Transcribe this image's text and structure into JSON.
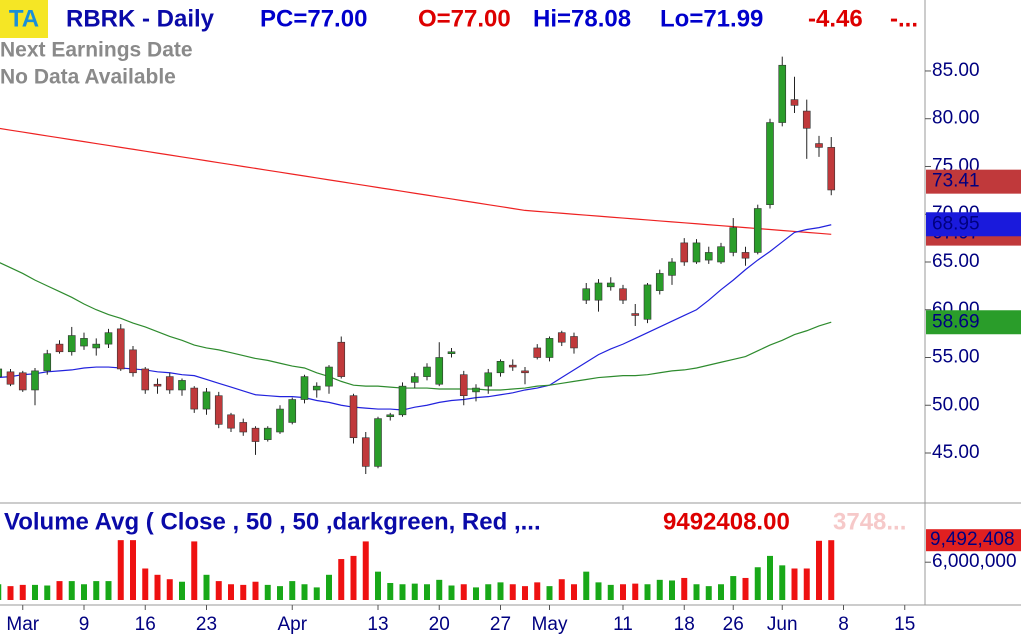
{
  "chart_data": {
    "type": "candlestick",
    "ticker_badge": "TA",
    "title": "RBRK - Daily",
    "header_fields": [
      {
        "text": "PC=77.00",
        "color": "#0000cc"
      },
      {
        "text": "O=77.00",
        "color": "#dd0000"
      },
      {
        "text": "Hi=78.08",
        "color": "#0000cc"
      },
      {
        "text": "Lo=71.99",
        "color": "#0000cc"
      },
      {
        "text": "-4.46",
        "color": "#dd0000"
      },
      {
        "text": "-...",
        "color": "#dd0000"
      }
    ],
    "notes": [
      "Next Earnings Date",
      "No Data Available"
    ],
    "categories": [
      null,
      null,
      "Mar",
      null,
      null,
      null,
      null,
      "9",
      null,
      null,
      null,
      null,
      "16",
      null,
      null,
      null,
      null,
      "23",
      null,
      null,
      null,
      null,
      null,
      null,
      "Apr",
      null,
      null,
      null,
      null,
      null,
      null,
      "13",
      null,
      null,
      null,
      null,
      "20",
      null,
      null,
      null,
      null,
      "27",
      null,
      null,
      null,
      "May",
      null,
      null,
      null,
      null,
      null,
      "11",
      null,
      null,
      null,
      null,
      "18",
      null,
      null,
      null,
      "26",
      null,
      null,
      null,
      "Jun",
      null,
      null,
      null,
      null,
      "8",
      null,
      null,
      null,
      null,
      "15"
    ],
    "open": [
      53.0,
      53.5,
      53.4,
      51.6,
      53.6,
      56.4,
      55.6,
      56.2,
      56.0,
      56.4,
      58.0,
      55.8,
      53.8,
      52.2,
      53.0,
      51.6,
      51.8,
      49.6,
      51.0,
      49.0,
      48.2,
      47.6,
      46.4,
      47.2,
      48.2,
      50.6,
      51.6,
      52.0,
      56.6,
      51.0,
      46.6,
      43.6,
      48.8,
      49.0,
      52.4,
      53.0,
      52.2,
      55.4,
      53.2,
      51.4,
      52.0,
      53.4,
      54.2,
      53.6,
      56.0,
      55.0,
      57.6,
      57.2,
      61.0,
      61.0,
      62.4,
      62.2,
      59.6,
      59.0,
      62.0,
      63.6,
      67.0,
      65.0,
      65.2,
      65.0,
      66.0,
      66.0,
      66.0,
      71.0,
      79.6,
      82.0,
      80.8,
      77.4,
      77.0,
      null,
      null,
      null,
      null,
      null,
      null
    ],
    "high": [
      54.6,
      53.8,
      53.6,
      53.9,
      55.8,
      56.8,
      58.2,
      57.6,
      57.0,
      58.0,
      58.5,
      56.2,
      54.0,
      52.8,
      53.4,
      52.8,
      52.0,
      51.8,
      51.4,
      49.2,
      48.6,
      47.8,
      47.8,
      50.0,
      50.8,
      53.2,
      52.4,
      54.2,
      57.2,
      51.2,
      47.2,
      48.8,
      49.2,
      52.4,
      53.4,
      54.4,
      56.6,
      56.0,
      53.6,
      52.2,
      53.8,
      54.8,
      54.8,
      54.0,
      56.4,
      57.2,
      57.8,
      57.6,
      62.8,
      63.2,
      63.4,
      62.6,
      60.6,
      62.8,
      64.2,
      65.4,
      67.5,
      67.4,
      66.6,
      67.0,
      69.6,
      66.6,
      71.0,
      80.0,
      86.5,
      84.4,
      82.0,
      78.2,
      78.08,
      null,
      null,
      null,
      null,
      null,
      null
    ],
    "low": [
      52.6,
      52.0,
      51.4,
      50.0,
      53.2,
      55.4,
      55.2,
      55.8,
      55.2,
      56.0,
      53.6,
      53.0,
      51.2,
      51.2,
      51.2,
      51.0,
      49.2,
      49.0,
      47.6,
      47.2,
      46.8,
      44.8,
      46.2,
      47.0,
      48.0,
      50.2,
      50.8,
      51.2,
      52.8,
      46.0,
      42.8,
      43.4,
      48.4,
      48.8,
      51.8,
      52.6,
      52.0,
      55.0,
      50.0,
      50.4,
      51.2,
      53.0,
      53.6,
      52.2,
      54.8,
      54.6,
      56.2,
      55.4,
      60.6,
      59.8,
      62.0,
      60.6,
      58.3,
      58.6,
      61.6,
      62.6,
      64.6,
      64.8,
      64.8,
      64.8,
      65.6,
      64.6,
      65.8,
      70.6,
      79.2,
      80.6,
      75.8,
      76.0,
      71.99,
      null,
      null,
      null,
      null,
      null,
      null
    ],
    "close": [
      53.8,
      52.2,
      51.6,
      53.6,
      55.4,
      55.6,
      57.3,
      57.0,
      56.4,
      57.6,
      53.8,
      53.4,
      51.6,
      52.0,
      51.6,
      52.6,
      49.6,
      51.4,
      48.0,
      47.6,
      47.2,
      46.2,
      47.6,
      49.6,
      50.6,
      53.0,
      52.0,
      54.0,
      53.0,
      46.6,
      43.6,
      48.6,
      49.0,
      52.0,
      53.0,
      54.0,
      55.0,
      55.6,
      51.0,
      51.8,
      53.4,
      54.6,
      54.0,
      53.4,
      55.0,
      57.0,
      56.6,
      56.0,
      62.2,
      62.8,
      62.8,
      61.0,
      59.4,
      62.6,
      63.8,
      65.0,
      65.0,
      67.0,
      66.0,
      66.6,
      68.6,
      65.4,
      70.6,
      79.6,
      85.6,
      81.4,
      79.0,
      77.0,
      72.54,
      null,
      null,
      null,
      null,
      null,
      null
    ],
    "up_color": "#2a9d2a",
    "down_color": "#c0393b",
    "moving_averages": [
      {
        "color": "#ee2222",
        "values": [
          79.0,
          78.8,
          78.6,
          78.4,
          78.2,
          78.0,
          77.8,
          77.6,
          77.4,
          77.2,
          77.0,
          76.8,
          76.6,
          76.4,
          76.2,
          76.0,
          75.8,
          75.6,
          75.4,
          75.2,
          75.0,
          74.8,
          74.6,
          74.4,
          74.2,
          74.0,
          73.8,
          73.6,
          73.4,
          73.2,
          73.0,
          72.8,
          72.6,
          72.4,
          72.2,
          72.0,
          71.8,
          71.6,
          71.4,
          71.2,
          71.0,
          70.8,
          70.6,
          70.4,
          70.3,
          70.2,
          70.1,
          70.0,
          69.9,
          69.8,
          69.7,
          69.6,
          69.5,
          69.4,
          69.3,
          69.2,
          69.1,
          69.0,
          68.9,
          68.8,
          68.7,
          68.6,
          68.5,
          68.4,
          68.3,
          68.2,
          68.1,
          68.0,
          67.9,
          null,
          null,
          null,
          null,
          null,
          null
        ]
      },
      {
        "color": "#2222dd",
        "values": [
          52.9,
          53.0,
          53.2,
          53.3,
          53.5,
          53.6,
          53.7,
          53.9,
          54.0,
          54.0,
          53.9,
          53.8,
          53.7,
          53.5,
          53.4,
          53.2,
          53.1,
          52.7,
          52.3,
          51.9,
          51.5,
          51.1,
          51.0,
          50.9,
          50.9,
          50.8,
          50.5,
          50.3,
          50.0,
          49.8,
          49.7,
          49.6,
          49.6,
          49.5,
          49.8,
          50.0,
          50.3,
          50.5,
          50.6,
          50.8,
          50.9,
          51.1,
          51.3,
          51.6,
          51.8,
          52.1,
          52.9,
          53.7,
          54.5,
          55.3,
          55.9,
          56.4,
          57.0,
          57.6,
          58.2,
          58.8,
          59.4,
          60.0,
          61.0,
          62.1,
          63.1,
          64.2,
          65.2,
          66.1,
          67.1,
          68.1,
          68.4,
          68.6,
          68.9,
          null,
          null,
          null,
          null,
          null,
          null
        ]
      },
      {
        "color": "#2e8b2e",
        "values": [
          65.0,
          64.4,
          63.8,
          63.1,
          62.5,
          61.9,
          61.3,
          60.6,
          60.0,
          59.5,
          59.1,
          58.6,
          58.2,
          57.7,
          57.2,
          56.8,
          56.3,
          56.0,
          55.8,
          55.5,
          55.2,
          54.9,
          54.7,
          54.4,
          54.1,
          53.9,
          53.4,
          53.0,
          52.5,
          52.1,
          52.0,
          52.0,
          51.9,
          51.8,
          51.8,
          51.8,
          51.7,
          51.7,
          51.7,
          51.7,
          51.6,
          51.6,
          51.7,
          51.8,
          52.0,
          52.1,
          52.3,
          52.5,
          52.7,
          52.9,
          53.0,
          53.1,
          53.1,
          53.2,
          53.4,
          53.6,
          53.7,
          53.9,
          54.2,
          54.5,
          54.8,
          55.1,
          55.7,
          56.3,
          56.8,
          57.4,
          57.8,
          58.3,
          58.7,
          null,
          null,
          null,
          null,
          null,
          null
        ]
      }
    ],
    "ylim": [
      40.08,
      92.43
    ],
    "yticks": [
      {
        "value": 45,
        "label": "45.00"
      },
      {
        "value": 50,
        "label": "50.00"
      },
      {
        "value": 55,
        "label": "55.00"
      },
      {
        "value": 60,
        "label": "60.00"
      },
      {
        "value": 65,
        "label": "65.00"
      },
      {
        "value": 70,
        "label": "70.00"
      },
      {
        "value": 75,
        "label": "75.00"
      },
      {
        "value": 80,
        "label": "80.00"
      },
      {
        "value": 85,
        "label": "85.00"
      }
    ],
    "price_labels": [
      {
        "value": 67.97,
        "label": "67.97",
        "color": "#c0393b"
      },
      {
        "value": 68.95,
        "label": "68.95",
        "color": "#1a1adc"
      },
      {
        "value": 73.41,
        "label": "73.41",
        "color": "#c0393b"
      },
      {
        "value": 58.69,
        "label": "58.69",
        "color": "#2a9d2a"
      }
    ],
    "volume": {
      "title": "Volume Avg ( Close , 50 , 50 ,darkgreen, Red ,...",
      "last_text": "9492408.00",
      "faded_text": "3748...",
      "values": [
        2500000,
        2200000,
        2400000,
        2400000,
        2300000,
        3000000,
        3000000,
        2500000,
        3000000,
        3000000,
        9500000,
        9500000,
        5000000,
        4000000,
        3300000,
        2900000,
        9300000,
        4000000,
        3000000,
        2500000,
        2400000,
        2900000,
        2400000,
        2200000,
        3000000,
        2500000,
        2000000,
        4000000,
        6500000,
        7000000,
        9300000,
        4500000,
        2700000,
        2500000,
        2600000,
        2500000,
        3200000,
        2300000,
        2500000,
        2000000,
        2500000,
        2800000,
        2500000,
        2200000,
        2800000,
        2200000,
        3300000,
        2500000,
        4500000,
        2800000,
        2400000,
        2500000,
        2600000,
        2500000,
        3200000,
        3100000,
        3500000,
        2500000,
        2200000,
        2500000,
        3800000,
        3500000,
        5200000,
        7000000,
        5500000,
        5000000,
        5000000,
        9400000,
        9492408,
        null,
        null,
        null,
        null,
        null,
        null
      ],
      "ylim": [
        0,
        15080000
      ],
      "yticks": [
        {
          "value": 6000000,
          "label": "6,000,000"
        }
      ],
      "labels": [
        {
          "value": 9492408,
          "label": "9,492,408",
          "color": "#e02020"
        }
      ]
    }
  }
}
